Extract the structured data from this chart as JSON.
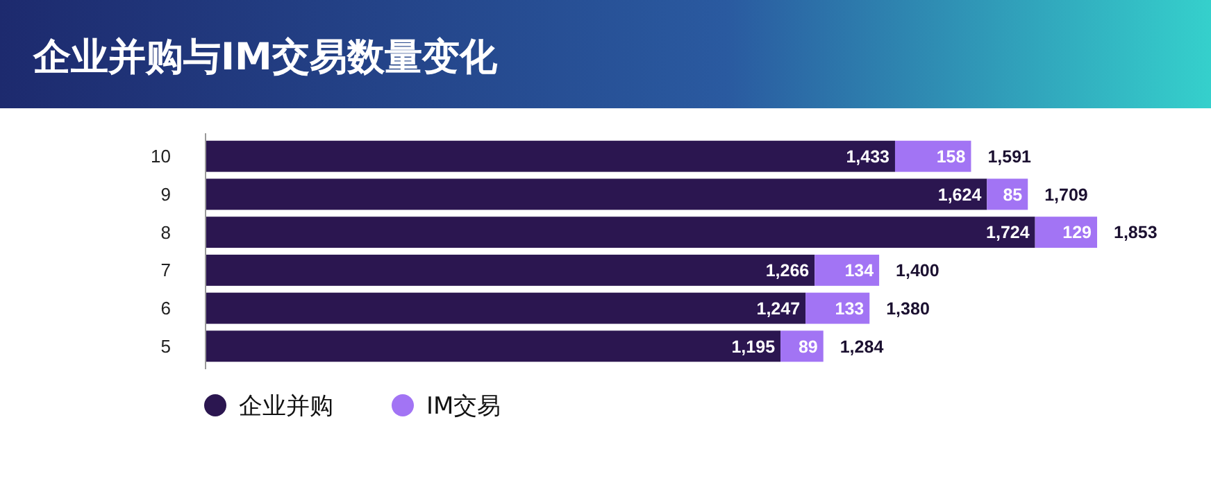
{
  "chart_data": {
    "type": "bar",
    "orientation": "horizontal",
    "stacked": true,
    "title": "企业并购与IM交易数量变化",
    "categories": [
      "10",
      "9",
      "8",
      "7",
      "6",
      "5"
    ],
    "series": [
      {
        "name": "企业并购",
        "color": "#2b1650",
        "values": [
          1433,
          1624,
          1724,
          1266,
          1247,
          1195
        ],
        "value_labels": [
          "1,433",
          "1,624",
          "1,724",
          "1,266",
          "1,247",
          "1,195"
        ]
      },
      {
        "name": "IM交易",
        "color": "#a274f4",
        "values": [
          158,
          85,
          129,
          134,
          133,
          89
        ]
      }
    ],
    "data_labels": true,
    "totals": [
      "1,591",
      "1,709",
      "1,853",
      "1,400",
      "1,380",
      "1,284"
    ],
    "legend": "bottom"
  }
}
